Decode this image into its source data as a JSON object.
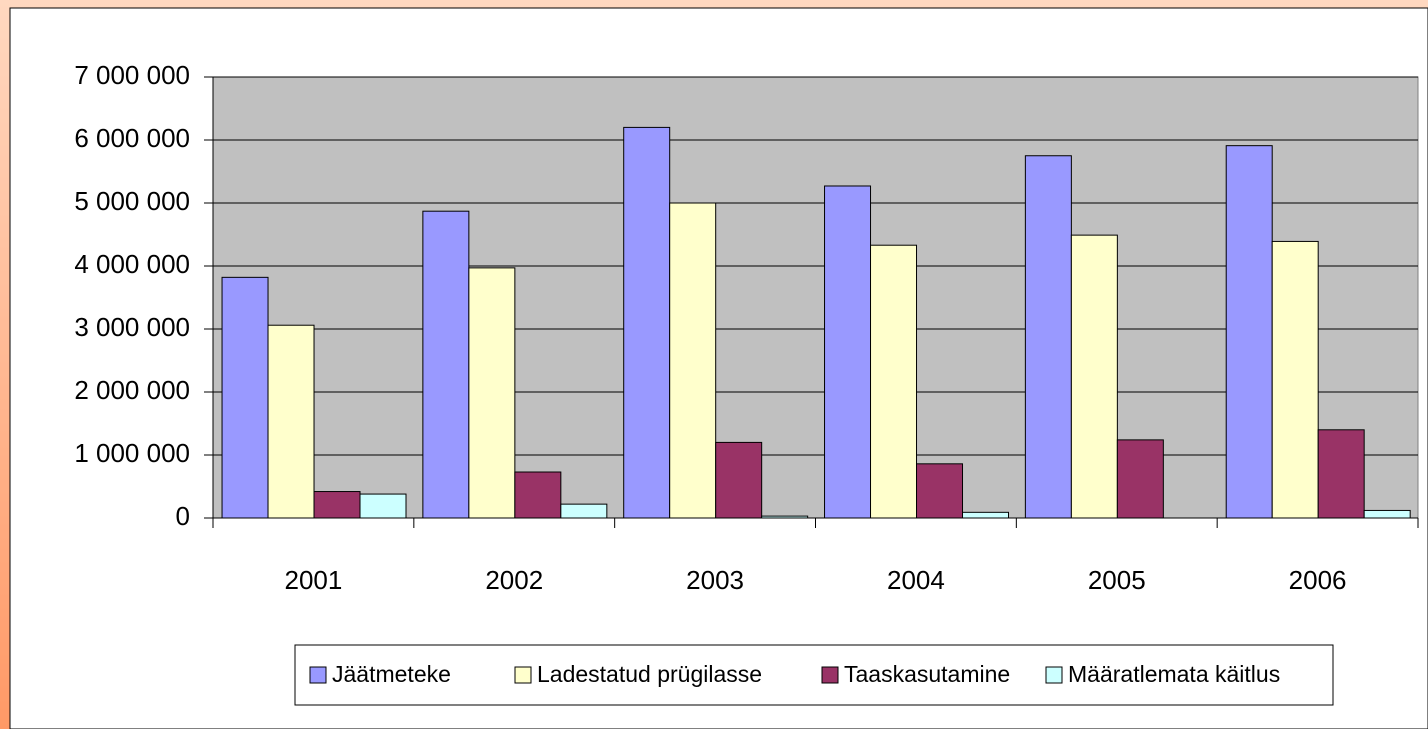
{
  "chart_data": {
    "type": "bar",
    "categories": [
      "2001",
      "2002",
      "2003",
      "2004",
      "2005",
      "2006"
    ],
    "series": [
      {
        "name": "Jäätmeteke",
        "color": "#9999ff",
        "values": [
          3820000,
          4870000,
          6200000,
          5270000,
          5750000,
          5910000
        ]
      },
      {
        "name": "Ladestatud prügilasse",
        "color": "#ffffcc",
        "values": [
          3060000,
          3970000,
          5000000,
          4330000,
          4490000,
          4390000
        ]
      },
      {
        "name": "Taaskasutamine",
        "color": "#993366",
        "values": [
          420000,
          730000,
          1200000,
          860000,
          1240000,
          1400000
        ]
      },
      {
        "name": "Määratlemata käitlus",
        "color": "#ccffff",
        "values": [
          380000,
          220000,
          30000,
          90000,
          0,
          120000
        ]
      }
    ],
    "ylim": [
      0,
      7000000
    ],
    "yticks": [
      0,
      {
        "value": 1000000,
        "label": "1 000 000"
      },
      {
        "value": 2000000,
        "label": "2 000 000"
      },
      {
        "value": 3000000,
        "label": "3 000 000"
      },
      {
        "value": 4000000,
        "label": "4 000 000"
      },
      {
        "value": 5000000,
        "label": "5 000 000"
      },
      {
        "value": 6000000,
        "label": "6 000 000"
      },
      {
        "value": 7000000,
        "label": "7 000 000"
      }
    ],
    "grid": true,
    "legend": "bottom"
  }
}
